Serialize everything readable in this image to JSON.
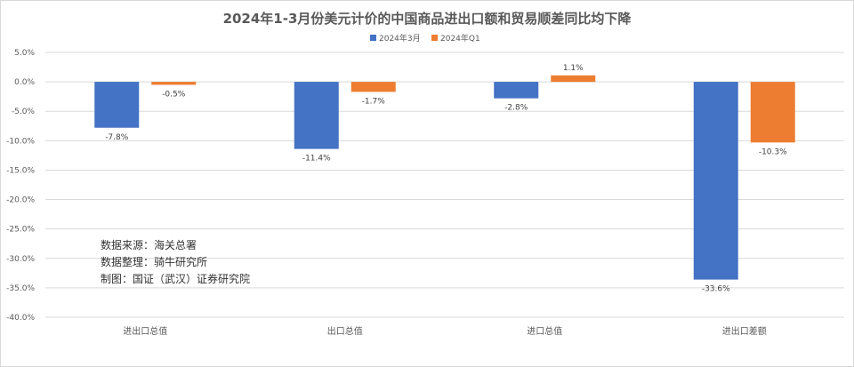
{
  "chart_data": {
    "type": "bar",
    "title": "2024年1-3月份美元计价的中国商品进出口额和贸易顺差同比均下降",
    "categories": [
      "进出口总值",
      "出口总值",
      "进口总值",
      "进出口差额"
    ],
    "series": [
      {
        "name": "2024年3月",
        "values": [
          -7.8,
          -11.4,
          -2.8,
          -33.6
        ],
        "labels": [
          "-7.8%",
          "-11.4%",
          "-2.8%",
          "-33.6%"
        ],
        "color": "#4472c4"
      },
      {
        "name": "2024年Q1",
        "values": [
          -0.5,
          -1.7,
          1.1,
          -10.3
        ],
        "labels": [
          "-0.5%",
          "-1.7%",
          "1.1%",
          "-10.3%"
        ],
        "color": "#ed7d31"
      }
    ],
    "ylim": [
      -40,
      5
    ],
    "yticks": [
      5,
      0,
      -5,
      -10,
      -15,
      -20,
      -25,
      -30,
      -35,
      -40
    ],
    "ytick_labels": [
      "5.0%",
      "0.0%",
      "-5.0%",
      "-10.0%",
      "-15.0%",
      "-20.0%",
      "-25.0%",
      "-30.0%",
      "-35.0%",
      "-40.0%"
    ],
    "grid": true,
    "legend": "top-center"
  },
  "notes": {
    "source": "数据来源：海关总署",
    "compiled": "数据整理：骑牛研究所",
    "made_by": "制图：国证（武汉）证券研究院"
  },
  "colors": {
    "grid": "#d9d9d9",
    "text": "#595959"
  }
}
